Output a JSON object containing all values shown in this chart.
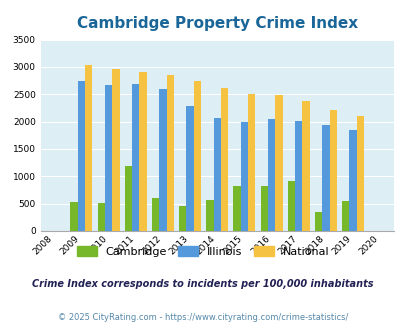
{
  "title": "Cambridge Property Crime Index",
  "years": [
    2008,
    2009,
    2010,
    2011,
    2012,
    2013,
    2014,
    2015,
    2016,
    2017,
    2018,
    2019,
    2020
  ],
  "cambridge": [
    0,
    530,
    510,
    1190,
    610,
    450,
    570,
    820,
    830,
    910,
    350,
    540,
    0
  ],
  "illinois": [
    0,
    2750,
    2670,
    2680,
    2590,
    2280,
    2070,
    1990,
    2050,
    2010,
    1940,
    1840,
    0
  ],
  "national": [
    0,
    3040,
    2960,
    2910,
    2860,
    2740,
    2610,
    2500,
    2480,
    2380,
    2210,
    2110,
    0
  ],
  "cambridge_color": "#76b82a",
  "illinois_color": "#5599dd",
  "national_color": "#f5c242",
  "bg_color": "#ddeef5",
  "ylim": [
    0,
    3500
  ],
  "yticks": [
    0,
    500,
    1000,
    1500,
    2000,
    2500,
    3000,
    3500
  ],
  "footnote1": "Crime Index corresponds to incidents per 100,000 inhabitants",
  "footnote2": "© 2025 CityRating.com - https://www.cityrating.com/crime-statistics/",
  "legend_labels": [
    "Cambridge",
    "Illinois",
    "National"
  ],
  "title_color": "#1a6699",
  "footnote1_color": "#222255",
  "footnote2_color": "#5588aa"
}
